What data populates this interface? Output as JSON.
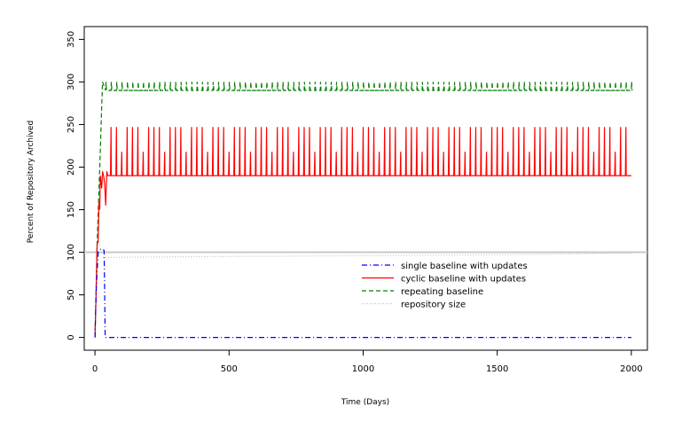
{
  "chart_data": {
    "type": "line",
    "title": "",
    "xlabel": "Time (Days)",
    "ylabel": "Percent of Repository Archived",
    "xlim": [
      -40,
      2060
    ],
    "ylim": [
      -15,
      365
    ],
    "x_ticks": [
      0,
      500,
      1000,
      1500,
      2000
    ],
    "y_ticks": [
      0,
      50,
      100,
      150,
      200,
      250,
      300,
      350
    ],
    "x_tick_labels": [
      "0",
      "500",
      "1000",
      "1500",
      "2000"
    ],
    "y_tick_labels": [
      "0",
      "50",
      "100",
      "150",
      "200",
      "250",
      "300",
      "350"
    ],
    "grid": false,
    "reference_line": {
      "y": 100,
      "color": "#c8c8c8"
    },
    "legend": {
      "placement": "center-right",
      "box": false
    },
    "series": [
      {
        "name": "single baseline with updates",
        "color": "#0000ff",
        "style": "dashdot",
        "points": [
          [
            0,
            0
          ],
          [
            5,
            60
          ],
          [
            12,
            100
          ],
          [
            22,
            104
          ],
          [
            28,
            104
          ],
          [
            34,
            102
          ],
          [
            38,
            0
          ],
          [
            2000,
            0
          ]
        ]
      },
      {
        "name": "cyclic baseline with updates",
        "color": "#ff0000",
        "style": "solid",
        "start_points": [
          [
            0,
            0
          ],
          [
            5,
            60
          ],
          [
            8,
            110
          ],
          [
            12,
            112
          ],
          [
            15,
            160
          ],
          [
            18,
            150
          ],
          [
            20,
            190
          ],
          [
            25,
            175
          ],
          [
            28,
            195
          ],
          [
            32,
            190
          ],
          [
            36,
            180
          ],
          [
            40,
            155
          ],
          [
            44,
            195
          ],
          [
            48,
            190
          ]
        ],
        "spike_interval_days": 20,
        "spike_start_day": 60,
        "spike_end_day": 1990,
        "base_value": 190,
        "peak_value": 247,
        "secondary_peak_value": 218,
        "end_value": 190
      },
      {
        "name": "repeating baseline",
        "color": "#007f00",
        "style": "dashed",
        "start_points": [
          [
            0,
            0
          ],
          [
            8,
            110
          ],
          [
            18,
            200
          ],
          [
            28,
            300
          ],
          [
            40,
            290
          ]
        ],
        "tooth_interval_days": 20,
        "tooth_start_day": 40,
        "tooth_end_day": 2000,
        "base_value": 290,
        "peak_value": 300
      },
      {
        "name": "repository size",
        "color": "#c0c0c0",
        "style": "dotted",
        "points": [
          [
            30,
            94
          ],
          [
            500,
            95
          ],
          [
            1000,
            96
          ],
          [
            1500,
            97
          ],
          [
            2000,
            99
          ]
        ]
      }
    ]
  }
}
